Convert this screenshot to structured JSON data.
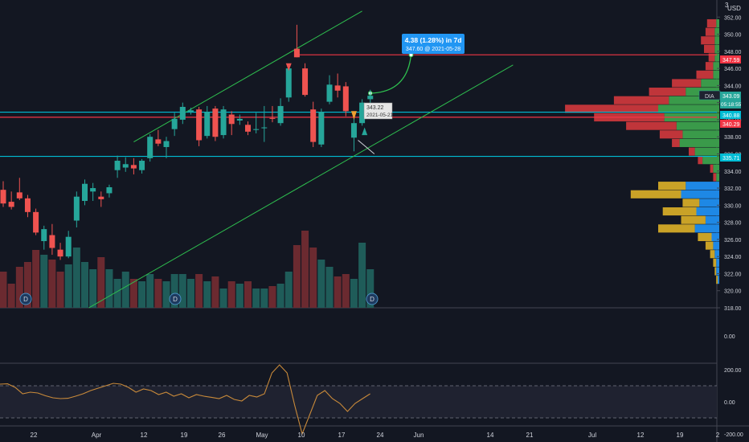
{
  "colors": {
    "background": "#131722",
    "up": "#26a69a",
    "down": "#ef5350",
    "vol_up": "#1f5c59",
    "vol_down": "#6b2a30",
    "grid": "#2a2e39",
    "axis_text": "#d1d4dc",
    "channel": "#2ebf4f",
    "hline_red": "#f23645",
    "hline_cyan": "#00bcd4",
    "callout": "#2196f3",
    "oscillator": "#c98a3a",
    "vp_up": "#3a9a4a",
    "vp_down": "#c0353a",
    "vp_va_up": "#1e88e5",
    "vp_va_down": "#c9a227"
  },
  "header": {
    "currency": "USD",
    "top_label": "3"
  },
  "price_tags": {
    "last": {
      "value": "347.59",
      "color": "#f23645"
    },
    "symbol": {
      "symbol": "DIA",
      "value": "343.09",
      "countdown": "05:18:55"
    },
    "cyan_upper": {
      "value": "340.88"
    },
    "red_line": {
      "value": "340.29"
    },
    "cyan_lower": {
      "value": "335.71"
    }
  },
  "callout": {
    "line1": "4.38 (1.28%) in 7d",
    "line2": "347.60 @ 2021-05-28"
  },
  "cursor_label": {
    "price": "343.22",
    "date": "2021-05-21"
  },
  "dividend_markers": [
    {
      "label": "D",
      "x_index": 0
    },
    {
      "label": "D",
      "x_index": 42
    },
    {
      "label": "D",
      "x_index": 88
    }
  ],
  "chart_data": [
    {
      "type": "candlestick",
      "title": "",
      "xlabel": "",
      "ylabel": "",
      "ylim": [
        318,
        354
      ],
      "x_tick_labels": [
        "22",
        "Apr",
        "12",
        "19",
        "26",
        "May",
        "10",
        "17",
        "24",
        "Jun",
        "14",
        "21",
        "Jul",
        "12",
        "19",
        "2"
      ],
      "y_tick_labels": [
        "352.00",
        "350.00",
        "348.00",
        "346.00",
        "344.00",
        "342.00",
        "340.00",
        "338.00",
        "336.00",
        "334.00",
        "332.00",
        "330.00",
        "328.00",
        "326.00",
        "324.00",
        "322.00",
        "320.00",
        "318.00"
      ],
      "series": [
        {
          "candles": [
            {
              "d": "2021-03-18",
              "o": 331.8,
              "h": 332.8,
              "l": 329.8,
              "c": 330.2
            },
            {
              "d": "2021-03-19",
              "o": 330.4,
              "h": 331.6,
              "l": 329.5,
              "c": 329.8
            },
            {
              "d": "2021-03-22",
              "o": 331.5,
              "h": 333.2,
              "l": 330.6,
              "c": 330.8
            },
            {
              "d": "2021-03-23",
              "o": 330.8,
              "h": 331.2,
              "l": 328.6,
              "c": 329.2
            },
            {
              "d": "2021-03-24",
              "o": 329.2,
              "h": 329.6,
              "l": 326.5,
              "c": 326.8
            },
            {
              "d": "2021-03-25",
              "o": 325.8,
              "h": 327.6,
              "l": 324.8,
              "c": 327.2
            },
            {
              "d": "2021-03-26",
              "o": 326.5,
              "h": 327.8,
              "l": 324.2,
              "c": 325.0
            },
            {
              "d": "2021-03-29",
              "o": 324.8,
              "h": 325.6,
              "l": 323.6,
              "c": 324.0
            },
            {
              "d": "2021-03-30",
              "o": 324.0,
              "h": 327.0,
              "l": 323.8,
              "c": 326.3
            },
            {
              "d": "2021-03-31",
              "o": 328.2,
              "h": 331.6,
              "l": 327.4,
              "c": 331.0
            },
            {
              "d": "2021-04-01",
              "o": 330.5,
              "h": 333.0,
              "l": 330.0,
              "c": 332.5
            },
            {
              "d": "2021-04-05",
              "o": 331.6,
              "h": 332.6,
              "l": 330.5,
              "c": 332.0
            },
            {
              "d": "2021-04-06",
              "o": 331.0,
              "h": 331.6,
              "l": 329.8,
              "c": 330.7
            },
            {
              "d": "2021-04-07",
              "o": 331.4,
              "h": 332.4,
              "l": 330.9,
              "c": 332.1
            },
            {
              "d": "2021-04-08",
              "o": 334.1,
              "h": 335.8,
              "l": 333.2,
              "c": 335.2
            },
            {
              "d": "2021-04-09",
              "o": 334.4,
              "h": 335.6,
              "l": 333.9,
              "c": 334.8
            },
            {
              "d": "2021-04-12",
              "o": 334.7,
              "h": 335.5,
              "l": 333.6,
              "c": 334.3
            },
            {
              "d": "2021-04-13",
              "o": 334.1,
              "h": 335.4,
              "l": 333.7,
              "c": 335.2
            },
            {
              "d": "2021-04-14",
              "o": 335.5,
              "h": 338.3,
              "l": 335.1,
              "c": 338.0
            },
            {
              "d": "2021-04-15",
              "o": 337.7,
              "h": 338.8,
              "l": 336.9,
              "c": 337.2
            },
            {
              "d": "2021-04-16",
              "o": 336.8,
              "h": 338.0,
              "l": 335.5,
              "c": 337.5
            },
            {
              "d": "2021-04-19",
              "o": 338.9,
              "h": 340.8,
              "l": 338.1,
              "c": 340.1
            },
            {
              "d": "2021-04-20",
              "o": 340.0,
              "h": 342.0,
              "l": 339.5,
              "c": 341.5
            },
            {
              "d": "2021-04-21",
              "o": 340.9,
              "h": 341.4,
              "l": 340.6,
              "c": 341.1
            },
            {
              "d": "2021-04-22",
              "o": 341.2,
              "h": 341.5,
              "l": 336.9,
              "c": 337.6
            },
            {
              "d": "2021-04-23",
              "o": 338.1,
              "h": 341.6,
              "l": 337.8,
              "c": 340.9
            },
            {
              "d": "2021-04-26",
              "o": 341.3,
              "h": 341.6,
              "l": 337.5,
              "c": 338.0
            },
            {
              "d": "2021-04-27",
              "o": 338.2,
              "h": 341.6,
              "l": 337.8,
              "c": 341.2
            },
            {
              "d": "2021-04-28",
              "o": 340.6,
              "h": 341.0,
              "l": 338.2,
              "c": 339.5
            },
            {
              "d": "2021-04-29",
              "o": 339.9,
              "h": 340.6,
              "l": 339.4,
              "c": 340.1
            },
            {
              "d": "2021-04-30",
              "o": 339.4,
              "h": 339.8,
              "l": 338.2,
              "c": 338.6
            },
            {
              "d": "2021-05-03",
              "o": 338.8,
              "h": 340.8,
              "l": 338.4,
              "c": 338.9
            },
            {
              "d": "2021-05-04",
              "o": 339.0,
              "h": 341.6,
              "l": 337.4,
              "c": 339.1
            },
            {
              "d": "2021-05-05",
              "o": 340.2,
              "h": 341.6,
              "l": 339.7,
              "c": 340.1
            },
            {
              "d": "2021-05-06",
              "o": 339.6,
              "h": 342.5,
              "l": 339.3,
              "c": 341.6
            },
            {
              "d": "2021-05-07",
              "o": 342.6,
              "h": 346.2,
              "l": 342.1,
              "c": 346.0
            },
            {
              "d": "2021-05-10",
              "o": 348.3,
              "h": 351.1,
              "l": 347.3,
              "c": 347.3
            },
            {
              "d": "2021-05-11",
              "o": 346.0,
              "h": 346.6,
              "l": 342.7,
              "c": 342.9
            },
            {
              "d": "2021-05-12",
              "o": 341.2,
              "h": 342.1,
              "l": 336.8,
              "c": 337.4
            },
            {
              "d": "2021-05-13",
              "o": 337.1,
              "h": 341.3,
              "l": 336.8,
              "c": 340.9
            },
            {
              "d": "2021-05-14",
              "o": 342.1,
              "h": 345.2,
              "l": 341.8,
              "c": 344.1
            },
            {
              "d": "2021-05-17",
              "o": 344.0,
              "h": 345.4,
              "l": 342.6,
              "c": 343.4
            },
            {
              "d": "2021-05-18",
              "o": 343.9,
              "h": 344.4,
              "l": 340.4,
              "c": 341.0
            },
            {
              "d": "2021-05-19",
              "o": 337.9,
              "h": 340.6,
              "l": 336.3,
              "c": 339.6
            },
            {
              "d": "2021-05-20",
              "o": 339.6,
              "h": 342.4,
              "l": 339.3,
              "c": 342.0
            },
            {
              "d": "2021-05-21",
              "o": 342.4,
              "h": 343.5,
              "l": 341.9,
              "c": 342.8
            }
          ],
          "volume": [
            7.5,
            5.0,
            8.5,
            9.5,
            12.0,
            11.0,
            10.0,
            7.5,
            9.0,
            12.5,
            9.5,
            8.0,
            10.5,
            8.0,
            6.0,
            7.5,
            6.0,
            5.5,
            7.0,
            6.0,
            5.5,
            7.0,
            7.0,
            6.0,
            7.0,
            5.5,
            6.5,
            4.0,
            5.5,
            5.0,
            5.5,
            4.0,
            4.0,
            4.5,
            5.0,
            7.5,
            13.0,
            16.0,
            12.5,
            10.0,
            8.5,
            6.5,
            7.0,
            6.0,
            13.5,
            8.0
          ]
        }
      ]
    },
    {
      "type": "line",
      "title": "",
      "ylim": [
        -200,
        200
      ],
      "y_tick_labels": [
        "0.00"
      ],
      "x": [],
      "values": []
    },
    {
      "type": "line",
      "title": "",
      "ylim": [
        -240,
        240
      ],
      "y_tick_labels": [
        "200.00",
        "0.00",
        "-200.00"
      ],
      "guide_levels": [
        100,
        -100
      ],
      "values": [
        110,
        112,
        90,
        50,
        60,
        55,
        38,
        25,
        20,
        22,
        35,
        50,
        70,
        85,
        100,
        115,
        110,
        90,
        60,
        80,
        70,
        45,
        60,
        35,
        50,
        25,
        45,
        35,
        28,
        20,
        40,
        15,
        5,
        40,
        30,
        50,
        180,
        230,
        180,
        -20,
        -200,
        -80,
        40,
        70,
        20,
        -10,
        -60,
        -10,
        20,
        50
      ]
    },
    {
      "type": "bar",
      "title": "",
      "orientation": "horizontal",
      "ylim": [
        318,
        354
      ],
      "rows": [
        {
          "price": 350.8,
          "up": 0.2,
          "down": 0.6,
          "va": false
        },
        {
          "price": 349.8,
          "up": 0.3,
          "down": 0.6,
          "va": false
        },
        {
          "price": 348.8,
          "up": 0.3,
          "down": 0.9,
          "va": false
        },
        {
          "price": 347.8,
          "up": 0.3,
          "down": 0.7,
          "va": false
        },
        {
          "price": 346.8,
          "up": 0.3,
          "down": 0.4,
          "va": false
        },
        {
          "price": 345.8,
          "up": 0.4,
          "down": 0.5,
          "va": false
        },
        {
          "price": 344.8,
          "up": 0.4,
          "down": 1.1,
          "va": false
        },
        {
          "price": 343.8,
          "up": 1.2,
          "down": 1.9,
          "va": false
        },
        {
          "price": 342.8,
          "up": 2.2,
          "down": 2.4,
          "va": false
        },
        {
          "price": 341.8,
          "up": 3.3,
          "down": 3.6,
          "va": false
        },
        {
          "price": 340.8,
          "up": 4.0,
          "down": 6.1,
          "va": false
        },
        {
          "price": 339.8,
          "up": 3.6,
          "down": 4.6,
          "va": false
        },
        {
          "price": 338.8,
          "up": 2.8,
          "down": 3.3,
          "va": false
        },
        {
          "price": 337.8,
          "up": 2.4,
          "down": 1.5,
          "va": false
        },
        {
          "price": 336.8,
          "up": 2.6,
          "down": 0.5,
          "va": false
        },
        {
          "price": 335.8,
          "up": 1.6,
          "down": 0.4,
          "va": false
        },
        {
          "price": 334.8,
          "up": 1.1,
          "down": 0.3,
          "va": false
        },
        {
          "price": 333.8,
          "up": 0.4,
          "down": 0.2,
          "va": false
        },
        {
          "price": 332.8,
          "up": 0.2,
          "down": 0.2,
          "va": false
        },
        {
          "price": 331.8,
          "up": 2.2,
          "down": 1.8,
          "va": true
        },
        {
          "price": 330.8,
          "up": 2.5,
          "down": 3.3,
          "va": true
        },
        {
          "price": 329.8,
          "up": 1.3,
          "down": 1.1,
          "va": true
        },
        {
          "price": 328.8,
          "up": 1.5,
          "down": 2.2,
          "va": true
        },
        {
          "price": 327.8,
          "up": 0.9,
          "down": 1.6,
          "va": true
        },
        {
          "price": 326.8,
          "up": 1.6,
          "down": 2.4,
          "va": true
        },
        {
          "price": 325.8,
          "up": 0.5,
          "down": 0.9,
          "va": true
        },
        {
          "price": 324.8,
          "up": 0.4,
          "down": 0.5,
          "va": true
        },
        {
          "price": 323.8,
          "up": 0.3,
          "down": 0.3,
          "va": true
        },
        {
          "price": 322.8,
          "up": 0.2,
          "down": 0.2,
          "va": true
        },
        {
          "price": 321.8,
          "up": 0.2,
          "down": 0.1,
          "va": true
        },
        {
          "price": 320.8,
          "up": 0.1,
          "down": 0.1,
          "va": true
        }
      ]
    }
  ]
}
